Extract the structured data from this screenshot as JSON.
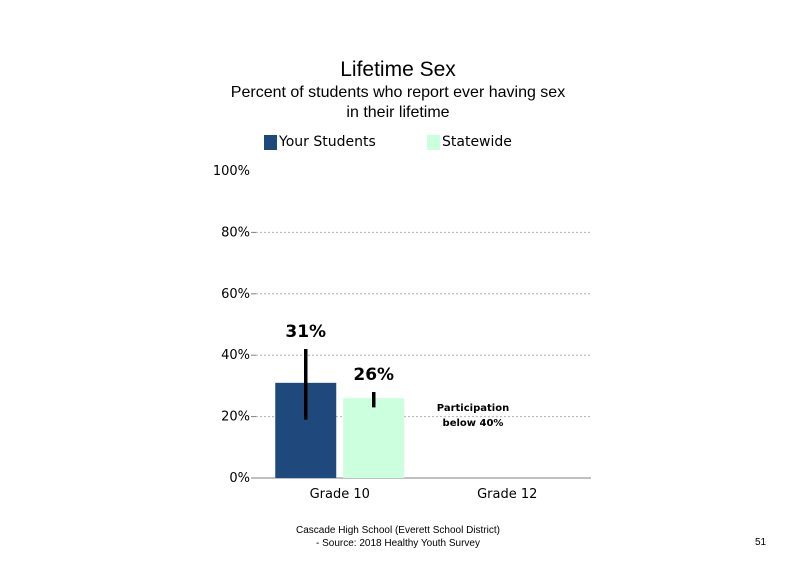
{
  "chart_data": {
    "type": "bar",
    "title": "Lifetime Sex",
    "subtitle_lines": [
      "Percent of students who report ever having sex",
      "in their lifetime"
    ],
    "categories": [
      "Grade 10",
      "Grade 12"
    ],
    "series": [
      {
        "name": "Your Students",
        "color": "#1f497d",
        "values": [
          31,
          null
        ],
        "value_labels": [
          "31%",
          ""
        ],
        "error_low": [
          19,
          null
        ],
        "error_high": [
          42,
          null
        ]
      },
      {
        "name": "Statewide",
        "color": "#ccffdd",
        "values": [
          26,
          null
        ],
        "value_labels": [
          "26%",
          ""
        ],
        "error_low": [
          23,
          null
        ],
        "error_high": [
          28,
          null
        ]
      }
    ],
    "y_ticks": [
      0,
      20,
      40,
      60,
      80,
      100
    ],
    "y_tick_labels": [
      "0%",
      "20%",
      "40%",
      "60%",
      "80%",
      "100%"
    ],
    "ylim": [
      0,
      100
    ],
    "xlabel": "",
    "ylabel": "",
    "grid": true,
    "legend_position": "top",
    "annotation_lines": [
      "Participation",
      "below 40%"
    ]
  },
  "footer": {
    "lines": [
      "Cascade High School (Everett School District)",
      "- Source: 2018 Healthy  Youth Survey"
    ],
    "page_number": "51"
  }
}
